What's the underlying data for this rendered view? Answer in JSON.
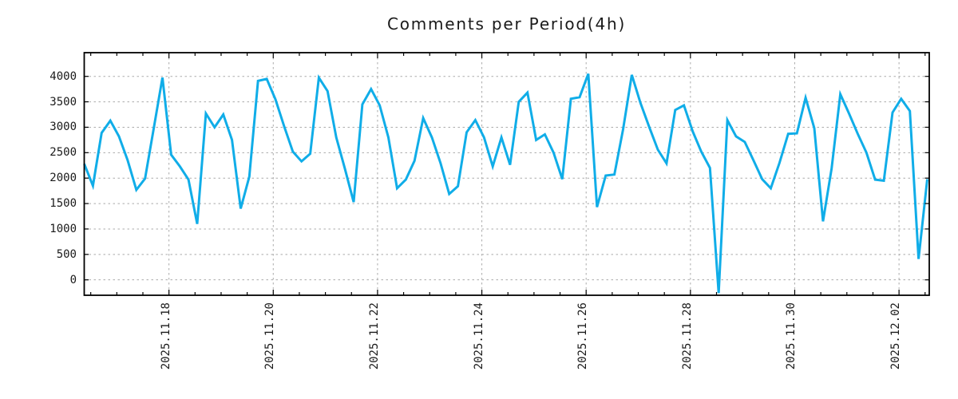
{
  "chart_data": {
    "type": "line",
    "title": "Comments per Period(4h)",
    "x_tick_labels": [
      "2025.11.18",
      "2025.11.20",
      "2025.11.22",
      "2025.11.24",
      "2025.11.26",
      "2025.11.28",
      "2025.11.30",
      "2025.12.02"
    ],
    "y_ticks": [
      0,
      500,
      1000,
      1500,
      2000,
      2500,
      3000,
      3500,
      4000
    ],
    "ylim": [
      -303,
      4466
    ],
    "grid": true,
    "legend_position": "none",
    "x_axis": {
      "point_interval_hours": 4,
      "minor_tick_hours": 12,
      "major_tick_days": 2
    },
    "x_first_tick_index": 9.75,
    "x_tick_step_points": 12,
    "series": [
      {
        "name": "comments_per_4h",
        "values": [
          2280,
          1850,
          2890,
          3130,
          2820,
          2350,
          1770,
          1990,
          2980,
          3975,
          2460,
          2230,
          1970,
          1100,
          3270,
          3000,
          3250,
          2750,
          1400,
          2030,
          3910,
          3950,
          3550,
          3020,
          2520,
          2330,
          2480,
          3975,
          3710,
          2800,
          2180,
          1530,
          3450,
          3750,
          3430,
          2800,
          1800,
          1970,
          2340,
          3180,
          2800,
          2290,
          1690,
          1840,
          2900,
          3140,
          2800,
          2230,
          2800,
          2260,
          3500,
          3680,
          2750,
          2860,
          2500,
          1980,
          3560,
          3590,
          4050,
          1430,
          2050,
          2070,
          2960,
          4030,
          3480,
          3010,
          2560,
          2290,
          3340,
          3430,
          2920,
          2520,
          2200,
          -260,
          3140,
          2820,
          2710,
          2350,
          1980,
          1800,
          2300,
          2870,
          2880,
          3580,
          2980,
          1150,
          2190,
          3650,
          3270,
          2870,
          2500,
          1970,
          1950,
          3290,
          3560,
          3320,
          410,
          1980
        ]
      }
    ],
    "colors": {
      "line": "#10ade8",
      "grid": "#ababab",
      "axis": "#000000",
      "text": "#1a1a1a",
      "background": "#ffffff"
    }
  }
}
